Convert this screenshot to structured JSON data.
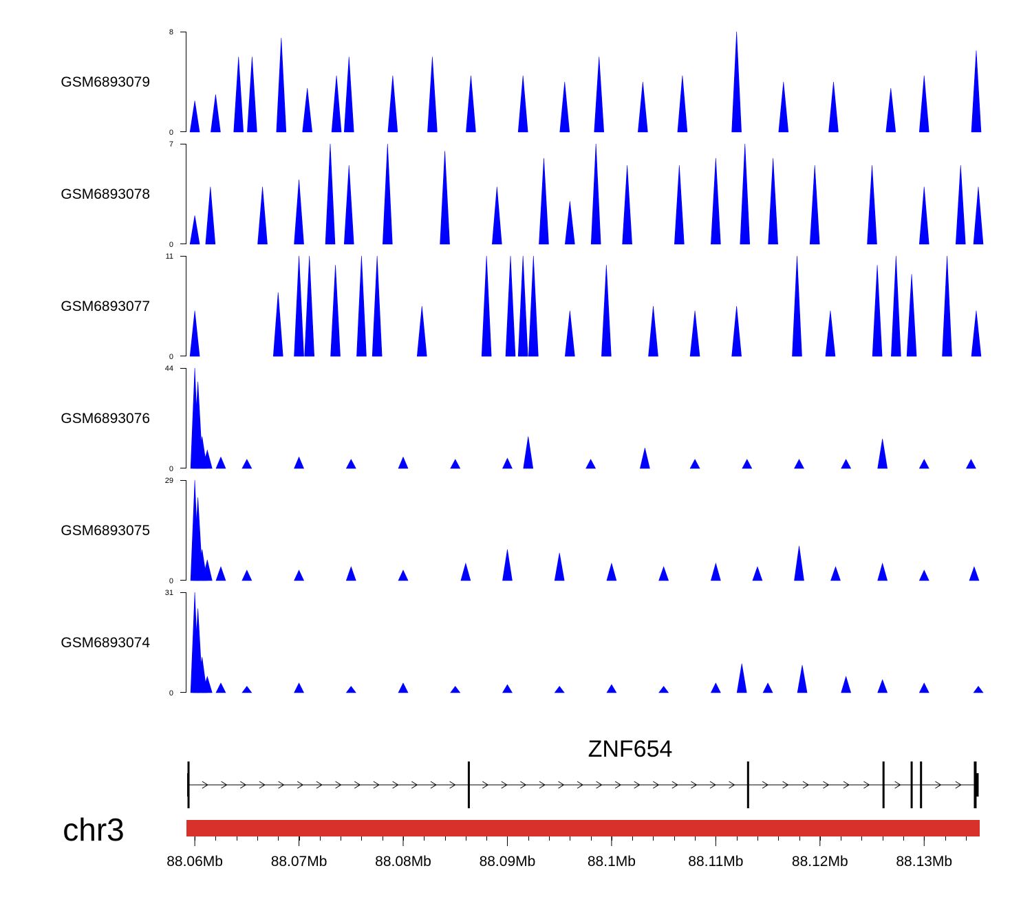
{
  "colors": {
    "signal": "#0000ff",
    "axis": "#000000",
    "chrom_bar": "#d8312b",
    "gene": "#000000"
  },
  "chart_data": {
    "type": "area",
    "title": "",
    "x_range_mb": [
      88.0592,
      88.1352
    ],
    "tracks": [
      {
        "name": "GSM6893079",
        "ymax": 8,
        "ymin_label": "0",
        "ymax_label": "8",
        "x": [
          88.06,
          88.062,
          88.0642,
          88.0655,
          88.0683,
          88.0708,
          88.0736,
          88.0748,
          88.079,
          88.0828,
          88.0865,
          88.0915,
          88.0955,
          88.0988,
          88.103,
          88.1068,
          88.112,
          88.1165,
          88.1213,
          88.1268,
          88.13,
          88.135
        ],
        "y": [
          2.5,
          3,
          6,
          6,
          7.5,
          3.5,
          4.5,
          6,
          4.5,
          6,
          4.5,
          4.5,
          4,
          6,
          4,
          4.5,
          8,
          4,
          4,
          3.5,
          4.5,
          6.5
        ]
      },
      {
        "name": "GSM6893078",
        "ymax": 7,
        "ymin_label": "0",
        "ymax_label": "7",
        "x": [
          88.06,
          88.0615,
          88.0665,
          88.07,
          88.073,
          88.0748,
          88.0785,
          88.084,
          88.089,
          88.0935,
          88.096,
          88.0985,
          88.1015,
          88.1065,
          88.11,
          88.1128,
          88.1155,
          88.1195,
          88.125,
          88.13,
          88.1335,
          88.1352
        ],
        "y": [
          2,
          4,
          4,
          4.5,
          7,
          5.5,
          7,
          6.5,
          4,
          6,
          3,
          7,
          5.5,
          5.5,
          6,
          7,
          6,
          5.5,
          5.5,
          4,
          5.5,
          4
        ]
      },
      {
        "name": "GSM6893077",
        "ymax": 11,
        "ymin_label": "0",
        "ymax_label": "11",
        "x": [
          88.06,
          88.068,
          88.07,
          88.071,
          88.0735,
          88.076,
          88.0775,
          88.0818,
          88.088,
          88.0903,
          88.0915,
          88.0925,
          88.096,
          88.0995,
          88.104,
          88.108,
          88.112,
          88.1178,
          88.121,
          88.1255,
          88.1273,
          88.1288,
          88.1322,
          88.135
        ],
        "y": [
          5,
          7,
          11,
          11,
          10,
          11,
          11,
          5.5,
          11,
          11,
          11,
          11,
          5,
          10,
          5.5,
          5,
          5.5,
          11,
          5,
          10,
          11,
          9,
          11,
          5
        ]
      },
      {
        "name": "GSM6893076",
        "ymax": 44,
        "ymin_label": "0",
        "ymax_label": "44",
        "x": [
          88.06,
          88.0603,
          88.0607,
          88.0612,
          88.0625,
          88.065,
          88.07,
          88.075,
          88.08,
          88.085,
          88.09,
          88.092,
          88.098,
          88.1032,
          88.108,
          88.113,
          88.118,
          88.1225,
          88.126,
          88.13,
          88.1345
        ],
        "y": [
          44,
          38,
          14,
          8,
          5,
          4,
          5,
          4,
          5,
          4,
          4.5,
          14,
          4,
          9,
          4,
          4,
          4,
          4,
          13,
          4,
          4
        ]
      },
      {
        "name": "GSM6893075",
        "ymax": 29,
        "ymin_label": "0",
        "ymax_label": "29",
        "x": [
          88.06,
          88.0603,
          88.0607,
          88.0612,
          88.0625,
          88.065,
          88.07,
          88.075,
          88.08,
          88.086,
          88.09,
          88.095,
          88.1,
          88.105,
          88.11,
          88.114,
          88.118,
          88.1215,
          88.126,
          88.13,
          88.1348
        ],
        "y": [
          29,
          24,
          9,
          6,
          4,
          3,
          3,
          4,
          3,
          5,
          9,
          8,
          5,
          4,
          5,
          4,
          10,
          4,
          5,
          3,
          4
        ]
      },
      {
        "name": "GSM6893074",
        "ymax": 31,
        "ymin_label": "0",
        "ymax_label": "31",
        "x": [
          88.06,
          88.0603,
          88.0607,
          88.0612,
          88.0625,
          88.065,
          88.07,
          88.075,
          88.08,
          88.085,
          88.09,
          88.095,
          88.1,
          88.105,
          88.11,
          88.1125,
          88.115,
          88.1183,
          88.1225,
          88.126,
          88.13,
          88.1352
        ],
        "y": [
          31,
          26,
          11,
          5,
          3,
          2,
          3,
          2,
          3,
          2,
          2.5,
          2,
          2.5,
          2,
          3,
          9,
          3,
          8.5,
          5,
          4,
          3,
          2
        ]
      }
    ],
    "gene": {
      "name": "ZNF654",
      "strand": "+",
      "exons_mb": [
        88.0594,
        88.0863,
        88.1131,
        88.1261,
        88.1288,
        88.1297,
        88.1349
      ]
    },
    "chromosome": {
      "label": "chr3",
      "range_mb": [
        88.0592,
        88.1352
      ]
    },
    "x_axis": {
      "tick_labels": [
        "88.06Mb",
        "88.07Mb",
        "88.08Mb",
        "88.09Mb",
        "88.1Mb",
        "88.11Mb",
        "88.12Mb",
        "88.13Mb"
      ],
      "tick_values": [
        88.06,
        88.07,
        88.08,
        88.09,
        88.1,
        88.11,
        88.12,
        88.13
      ],
      "minor_step": 0.002
    }
  }
}
